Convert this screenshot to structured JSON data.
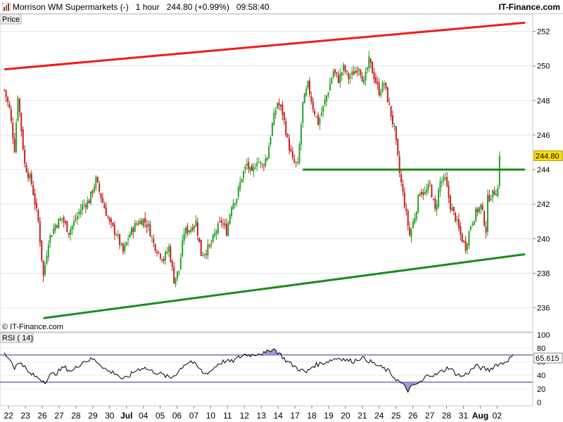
{
  "header": {
    "instrument": "Morrison WM Supermarkets (-)",
    "interval": "1 hour",
    "last": "244.80 (+0.99%)",
    "time": "09:58:40",
    "brand": "IT-Finance.com"
  },
  "price_panel": {
    "label": "Price",
    "watermark": "© IT-Finance.com",
    "last_price_tag": "244.80"
  },
  "rsi_panel": {
    "label": "RSI ( 14)",
    "value_tag": "65.615"
  },
  "colors": {
    "up_candle": "#28a028",
    "down_candle": "#c81e1e",
    "resistance": "#ee1c1c",
    "support": "#1c8c1c",
    "rsi_band": "#3030a0",
    "price_tag_bg": "#ffe000"
  },
  "chart_data": [
    {
      "type": "candlestick",
      "panel": "price",
      "ylim": [
        234.6,
        253.0
      ],
      "yticks": [
        236,
        238,
        240,
        242,
        244,
        246,
        248,
        250,
        252
      ],
      "x_labels": [
        "22",
        "23",
        "26",
        "27",
        "28",
        "29",
        "30",
        "Jul",
        "04",
        "05",
        "06",
        "07",
        "10",
        "11",
        "12",
        "13",
        "14",
        "17",
        "18",
        "19",
        "20",
        "21",
        "24",
        "25",
        "26",
        "27",
        "28",
        "31",
        "Aug",
        "02"
      ],
      "last_price": 244.8,
      "anchors": [
        [
          0,
          248.6
        ],
        [
          3,
          247.5
        ],
        [
          6,
          245.2
        ],
        [
          8,
          248.3
        ],
        [
          12,
          244.3
        ],
        [
          16,
          243.2
        ],
        [
          20,
          241.0
        ],
        [
          23,
          237.8
        ],
        [
          26,
          239.9
        ],
        [
          30,
          240.8
        ],
        [
          34,
          241.2
        ],
        [
          38,
          240.4
        ],
        [
          42,
          241.1
        ],
        [
          46,
          241.9
        ],
        [
          50,
          242.2
        ],
        [
          54,
          243.4
        ],
        [
          58,
          242.1
        ],
        [
          62,
          240.9
        ],
        [
          66,
          240.3
        ],
        [
          70,
          239.2
        ],
        [
          74,
          240.3
        ],
        [
          78,
          240.9
        ],
        [
          82,
          241.1
        ],
        [
          85,
          240.7
        ],
        [
          88,
          239.7
        ],
        [
          91,
          239.2
        ],
        [
          94,
          238.8
        ],
        [
          97,
          239.5
        ],
        [
          100,
          237.6
        ],
        [
          103,
          238.2
        ],
        [
          106,
          240.4
        ],
        [
          110,
          240.6
        ],
        [
          113,
          241.0
        ],
        [
          116,
          239.1
        ],
        [
          119,
          239.3
        ],
        [
          122,
          239.7
        ],
        [
          125,
          240.5
        ],
        [
          128,
          241.0
        ],
        [
          131,
          240.4
        ],
        [
          134,
          242.0
        ],
        [
          137,
          242.4
        ],
        [
          140,
          243.6
        ],
        [
          143,
          244.3
        ],
        [
          146,
          243.7
        ],
        [
          149,
          244.6
        ],
        [
          152,
          244.2
        ],
        [
          155,
          244.8
        ],
        [
          158,
          246.6
        ],
        [
          161,
          247.9
        ],
        [
          164,
          247.3
        ],
        [
          167,
          245.7
        ],
        [
          170,
          244.5
        ],
        [
          173,
          244.2
        ],
        [
          176,
          247.8
        ],
        [
          179,
          248.9
        ],
        [
          182,
          247.6
        ],
        [
          185,
          246.7
        ],
        [
          188,
          247.6
        ],
        [
          191,
          248.6
        ],
        [
          194,
          249.7
        ],
        [
          197,
          249.2
        ],
        [
          200,
          249.9
        ],
        [
          203,
          249.3
        ],
        [
          206,
          249.6
        ],
        [
          209,
          250.0
        ],
        [
          212,
          249.0
        ],
        [
          215,
          250.3
        ],
        [
          218,
          249.4
        ],
        [
          221,
          248.5
        ],
        [
          224,
          249.0
        ],
        [
          227,
          247.6
        ],
        [
          230,
          246.3
        ],
        [
          233,
          243.8
        ],
        [
          236,
          242.0
        ],
        [
          239,
          240.2
        ],
        [
          242,
          241.3
        ],
        [
          245,
          242.8
        ],
        [
          248,
          242.6
        ],
        [
          251,
          243.1
        ],
        [
          254,
          241.6
        ],
        [
          257,
          243.3
        ],
        [
          260,
          243.4
        ],
        [
          263,
          241.9
        ],
        [
          266,
          241.2
        ],
        [
          269,
          240.2
        ],
        [
          272,
          239.5
        ],
        [
          275,
          240.8
        ],
        [
          278,
          241.5
        ],
        [
          281,
          241.9
        ],
        [
          284,
          240.5
        ],
        [
          285,
          242.3
        ],
        [
          288,
          242.6
        ],
        [
          291,
          242.9
        ],
        [
          292,
          244.3
        ]
      ],
      "resistance_line": {
        "from": [
          0,
          249.8
        ],
        "to": [
          307,
          252.5
        ]
      },
      "support_line": {
        "from": [
          23,
          235.4
        ],
        "to": [
          307,
          239.1
        ]
      },
      "horizontal_line": {
        "from": [
          176,
          244.0
        ],
        "to": [
          307,
          244.0
        ]
      }
    },
    {
      "type": "line",
      "panel": "rsi",
      "name": "RSI ( 14)",
      "ylim": [
        -5,
        103
      ],
      "yticks": [
        0,
        20,
        40,
        60,
        80,
        100
      ],
      "bands": [
        30,
        70
      ],
      "anchors": [
        [
          0,
          72
        ],
        [
          3,
          65
        ],
        [
          6,
          52
        ],
        [
          10,
          60
        ],
        [
          14,
          44
        ],
        [
          20,
          36
        ],
        [
          24,
          31
        ],
        [
          27,
          40
        ],
        [
          31,
          44
        ],
        [
          35,
          52
        ],
        [
          40,
          46
        ],
        [
          46,
          60
        ],
        [
          52,
          64
        ],
        [
          56,
          58
        ],
        [
          61,
          46
        ],
        [
          66,
          43
        ],
        [
          70,
          33
        ],
        [
          74,
          40
        ],
        [
          78,
          48
        ],
        [
          82,
          52
        ],
        [
          86,
          47
        ],
        [
          90,
          44
        ],
        [
          94,
          40
        ],
        [
          98,
          36
        ],
        [
          102,
          44
        ],
        [
          106,
          56
        ],
        [
          110,
          61
        ],
        [
          114,
          52
        ],
        [
          118,
          42
        ],
        [
          122,
          47
        ],
        [
          126,
          57
        ],
        [
          130,
          61
        ],
        [
          134,
          60
        ],
        [
          138,
          66
        ],
        [
          142,
          71
        ],
        [
          146,
          70
        ],
        [
          150,
          73
        ],
        [
          154,
          72
        ],
        [
          158,
          80
        ],
        [
          162,
          73
        ],
        [
          166,
          62
        ],
        [
          170,
          55
        ],
        [
          174,
          49
        ],
        [
          178,
          44
        ],
        [
          182,
          54
        ],
        [
          186,
          57
        ],
        [
          190,
          60
        ],
        [
          194,
          64
        ],
        [
          198,
          66
        ],
        [
          202,
          62
        ],
        [
          206,
          61
        ],
        [
          210,
          66
        ],
        [
          214,
          63
        ],
        [
          218,
          57
        ],
        [
          222,
          52
        ],
        [
          226,
          47
        ],
        [
          230,
          37
        ],
        [
          234,
          28
        ],
        [
          238,
          18
        ],
        [
          242,
          26
        ],
        [
          246,
          30
        ],
        [
          250,
          42
        ],
        [
          254,
          40
        ],
        [
          258,
          46
        ],
        [
          262,
          52
        ],
        [
          266,
          43
        ],
        [
          270,
          38
        ],
        [
          274,
          45
        ],
        [
          278,
          54
        ],
        [
          282,
          50
        ],
        [
          286,
          48
        ],
        [
          290,
          56
        ],
        [
          294,
          58
        ],
        [
          298,
          65
        ],
        [
          300,
          68
        ]
      ]
    }
  ]
}
